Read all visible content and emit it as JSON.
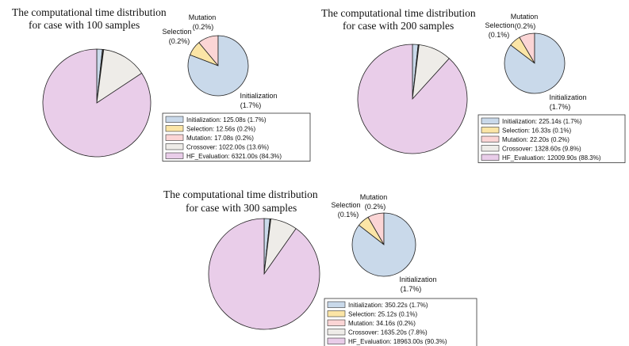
{
  "colors": {
    "Initialization": "#c9d9ea",
    "Selection": "#fbe5a6",
    "Mutation": "#fbd5d5",
    "Crossover": "#eeece8",
    "HF_Evaluation": "#e9cde9",
    "stroke": "#222222"
  },
  "chart_data": [
    {
      "type": "pie",
      "title_line1": "The computational time distribution",
      "title_line2": "for case with 100 samples",
      "categories": [
        "Initialization",
        "Selection",
        "Mutation",
        "Crossover",
        "HF_Evaluation"
      ],
      "values": [
        125.08,
        12.56,
        17.08,
        1022.0,
        6321.0
      ],
      "percents": [
        1.7,
        0.2,
        0.2,
        13.6,
        84.3
      ],
      "legend": [
        "Initialization: 125.08s (1.7%)",
        "Selection: 12.56s (0.2%)",
        "Mutation: 17.08s (0.2%)",
        "Crossover: 1022.00s (13.6%)",
        "HF_Evaluation: 6321.00s (84.3%)"
      ],
      "detail_labels": {
        "mutation_name": "Mutation",
        "mutation_pct": "(0.2%)",
        "selection_name": "Selection",
        "selection_pct": "(0.2%)",
        "init_name": "Initialization",
        "init_pct": "(1.7%)"
      }
    },
    {
      "type": "pie",
      "title_line1": "The computational time distribution",
      "title_line2": "for case with 200 samples",
      "categories": [
        "Initialization",
        "Selection",
        "Mutation",
        "Crossover",
        "HF_Evaluation"
      ],
      "values": [
        225.14,
        16.33,
        22.2,
        1328.6,
        12009.9
      ],
      "percents": [
        1.7,
        0.1,
        0.2,
        9.8,
        88.3
      ],
      "legend": [
        "Initialization: 225.14s (1.7%)",
        "Selection: 16.33s (0.1%)",
        "Mutation: 22.20s (0.2%)",
        "Crossover: 1328.60s (9.8%)",
        "HF_Evaluation: 12009.90s (88.3%)"
      ],
      "detail_labels": {
        "mutation_name": "Mutation",
        "mutation_pct": "(0.2%)",
        "selection_name": "Selection",
        "selection_pct": "(0.1%)",
        "init_name": "Initialization",
        "init_pct": "(1.7%)"
      }
    },
    {
      "type": "pie",
      "title_line1": "The computational time distribution",
      "title_line2": "for case with 300 samples",
      "categories": [
        "Initialization",
        "Selection",
        "Mutation",
        "Crossover",
        "HF_Evaluation"
      ],
      "values": [
        350.22,
        25.12,
        34.16,
        1635.2,
        18963.0
      ],
      "percents": [
        1.7,
        0.1,
        0.2,
        7.8,
        90.3
      ],
      "legend": [
        "Initialization: 350.22s (1.7%)",
        "Selection: 25.12s (0.1%)",
        "Mutation: 34.16s (0.2%)",
        "Crossover: 1635.20s (7.8%)",
        "HF_Evaluation: 18963.00s (90.3%)"
      ],
      "detail_labels": {
        "mutation_name": "Mutation",
        "mutation_pct": "(0.2%)",
        "selection_name": "Selection",
        "selection_pct": "(0.1%)",
        "init_name": "Initialization",
        "init_pct": "(1.7%)"
      }
    }
  ]
}
